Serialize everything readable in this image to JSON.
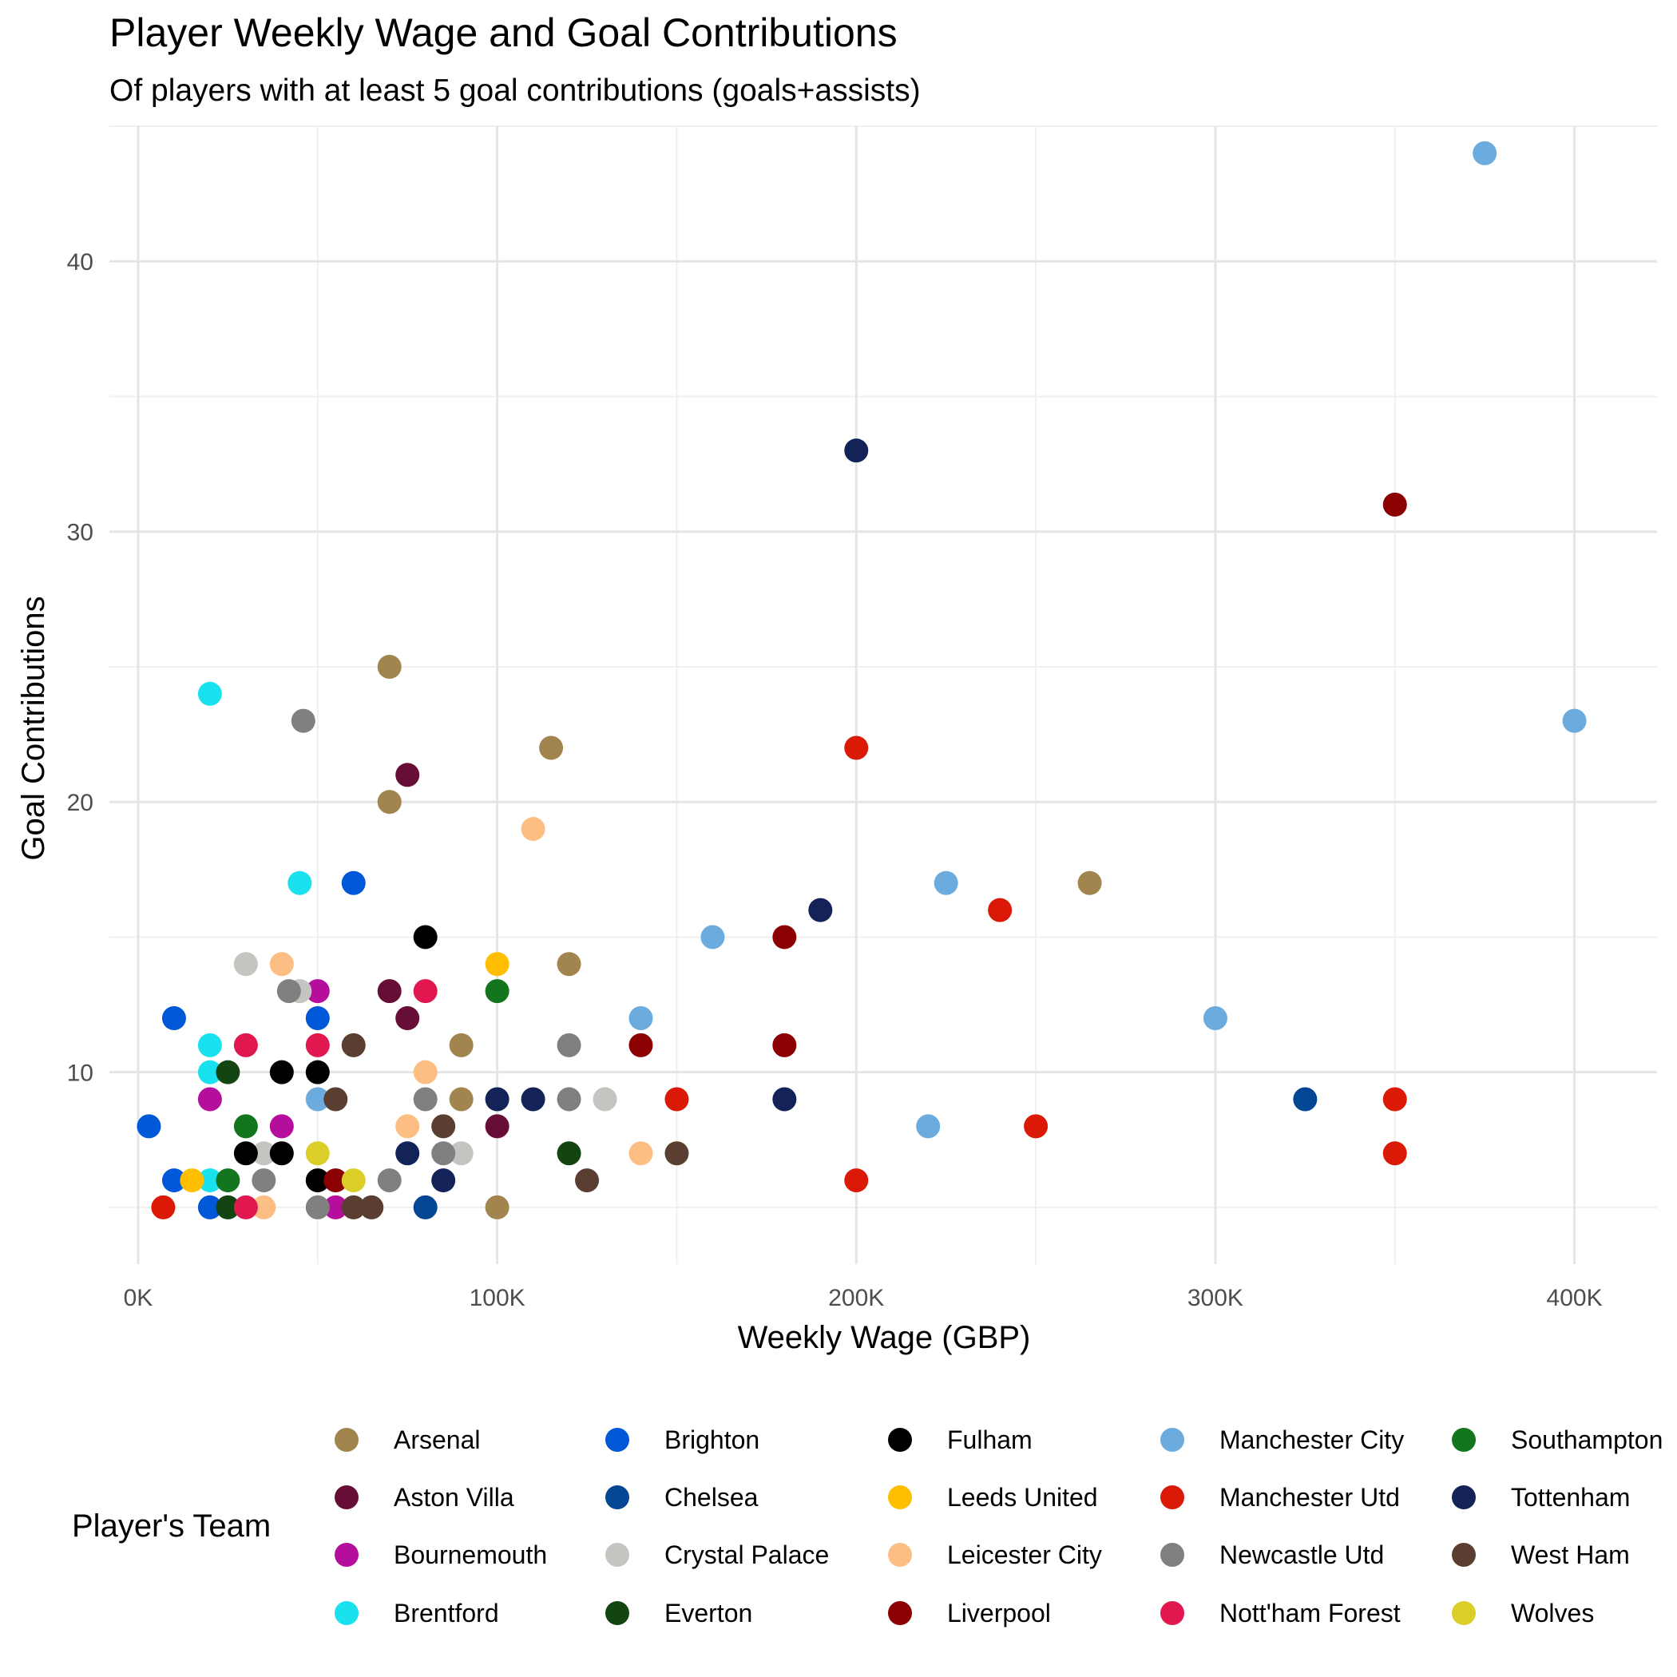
{
  "chart_data": {
    "type": "scatter",
    "title": "Player Weekly Wage and Goal Contributions",
    "subtitle": "Of players with at least 5 goal contributions (goals+assists)",
    "xlabel": "Weekly Wage (GBP)",
    "ylabel": "Goal Contributions",
    "xlim": [
      -8000,
      423000
    ],
    "ylim": [
      2.9,
      45
    ],
    "x_ticks": [
      0,
      100000,
      200000,
      300000,
      400000
    ],
    "x_tick_labels": [
      "0K",
      "100K",
      "200K",
      "300K",
      "400K"
    ],
    "y_ticks": [
      10,
      20,
      30,
      40
    ],
    "y_tick_labels": [
      "10",
      "20",
      "30",
      "40"
    ],
    "grid": true,
    "legend": {
      "title": "Player's Team",
      "position": "bottom"
    },
    "series": [
      {
        "name": "Arsenal",
        "color": "#A2844E",
        "points": [
          [
            70000,
            25
          ],
          [
            70000,
            20
          ],
          [
            115000,
            22
          ],
          [
            120000,
            14
          ],
          [
            90000,
            11
          ],
          [
            90000,
            9
          ],
          [
            100000,
            5
          ],
          [
            265000,
            17
          ]
        ]
      },
      {
        "name": "Aston Villa",
        "color": "#670E36",
        "points": [
          [
            75000,
            21
          ],
          [
            70000,
            13
          ],
          [
            75000,
            12
          ],
          [
            100000,
            8
          ]
        ]
      },
      {
        "name": "Bournemouth",
        "color": "#B50E9D",
        "points": [
          [
            50000,
            13
          ],
          [
            20000,
            9
          ],
          [
            40000,
            8
          ],
          [
            55000,
            5
          ]
        ]
      },
      {
        "name": "Brentford",
        "color": "#19E2EE",
        "points": [
          [
            20000,
            24
          ],
          [
            45000,
            17
          ],
          [
            20000,
            11
          ],
          [
            20000,
            10
          ],
          [
            20000,
            6
          ]
        ]
      },
      {
        "name": "Brighton",
        "color": "#0057D8",
        "points": [
          [
            60000,
            17
          ],
          [
            10000,
            12
          ],
          [
            50000,
            12
          ],
          [
            3000,
            8
          ],
          [
            10000,
            6
          ],
          [
            20000,
            5
          ]
        ]
      },
      {
        "name": "Chelsea",
        "color": "#034694",
        "points": [
          [
            325000,
            9
          ],
          [
            80000,
            5
          ]
        ]
      },
      {
        "name": "Crystal Palace",
        "color": "#C4C4C0",
        "points": [
          [
            30000,
            14
          ],
          [
            45000,
            13
          ],
          [
            130000,
            9
          ],
          [
            35000,
            7
          ],
          [
            90000,
            7
          ]
        ]
      },
      {
        "name": "Everton",
        "color": "#134513",
        "points": [
          [
            25000,
            10
          ],
          [
            120000,
            7
          ],
          [
            25000,
            5
          ]
        ]
      },
      {
        "name": "Fulham",
        "color": "#000000",
        "points": [
          [
            80000,
            15
          ],
          [
            40000,
            10
          ],
          [
            50000,
            10
          ],
          [
            30000,
            7
          ],
          [
            40000,
            7
          ],
          [
            50000,
            6
          ]
        ]
      },
      {
        "name": "Leeds United",
        "color": "#FFBF00",
        "points": [
          [
            100000,
            14
          ],
          [
            15000,
            6
          ]
        ]
      },
      {
        "name": "Leicester City",
        "color": "#FDBE83",
        "points": [
          [
            110000,
            19
          ],
          [
            40000,
            14
          ],
          [
            80000,
            10
          ],
          [
            75000,
            8
          ],
          [
            140000,
            7
          ],
          [
            35000,
            5
          ]
        ]
      },
      {
        "name": "Liverpool",
        "color": "#8B0000",
        "points": [
          [
            350000,
            31
          ],
          [
            180000,
            15
          ],
          [
            140000,
            11
          ],
          [
            180000,
            11
          ],
          [
            55000,
            6
          ]
        ]
      },
      {
        "name": "Manchester City",
        "color": "#6CABDD",
        "points": [
          [
            375000,
            44
          ],
          [
            400000,
            23
          ],
          [
            225000,
            17
          ],
          [
            160000,
            15
          ],
          [
            140000,
            12
          ],
          [
            300000,
            12
          ],
          [
            50000,
            9
          ],
          [
            220000,
            8
          ]
        ]
      },
      {
        "name": "Manchester Utd",
        "color": "#DA1A06",
        "points": [
          [
            200000,
            22
          ],
          [
            240000,
            16
          ],
          [
            150000,
            9
          ],
          [
            350000,
            9
          ],
          [
            250000,
            8
          ],
          [
            350000,
            7
          ],
          [
            200000,
            6
          ],
          [
            7000,
            5
          ]
        ]
      },
      {
        "name": "Newcastle Utd",
        "color": "#808080",
        "points": [
          [
            46000,
            23
          ],
          [
            42000,
            13
          ],
          [
            120000,
            11
          ],
          [
            80000,
            9
          ],
          [
            120000,
            9
          ],
          [
            85000,
            7
          ],
          [
            35000,
            6
          ],
          [
            70000,
            6
          ],
          [
            50000,
            5
          ]
        ]
      },
      {
        "name": "Nott'ham Forest",
        "color": "#E1184F",
        "points": [
          [
            80000,
            13
          ],
          [
            30000,
            11
          ],
          [
            50000,
            11
          ],
          [
            30000,
            5
          ]
        ]
      },
      {
        "name": "Southampton",
        "color": "#13751E",
        "points": [
          [
            100000,
            13
          ],
          [
            30000,
            8
          ],
          [
            25000,
            6
          ]
        ]
      },
      {
        "name": "Tottenham",
        "color": "#132257",
        "points": [
          [
            200000,
            33
          ],
          [
            190000,
            16
          ],
          [
            100000,
            9
          ],
          [
            110000,
            9
          ],
          [
            180000,
            9
          ],
          [
            75000,
            7
          ],
          [
            85000,
            6
          ]
        ]
      },
      {
        "name": "West Ham",
        "color": "#5A3E31",
        "points": [
          [
            60000,
            11
          ],
          [
            55000,
            9
          ],
          [
            85000,
            8
          ],
          [
            150000,
            7
          ],
          [
            125000,
            6
          ],
          [
            60000,
            5
          ],
          [
            65000,
            5
          ]
        ]
      },
      {
        "name": "Wolves",
        "color": "#DBCE29",
        "points": [
          [
            50000,
            7
          ],
          [
            60000,
            6
          ]
        ]
      }
    ]
  }
}
